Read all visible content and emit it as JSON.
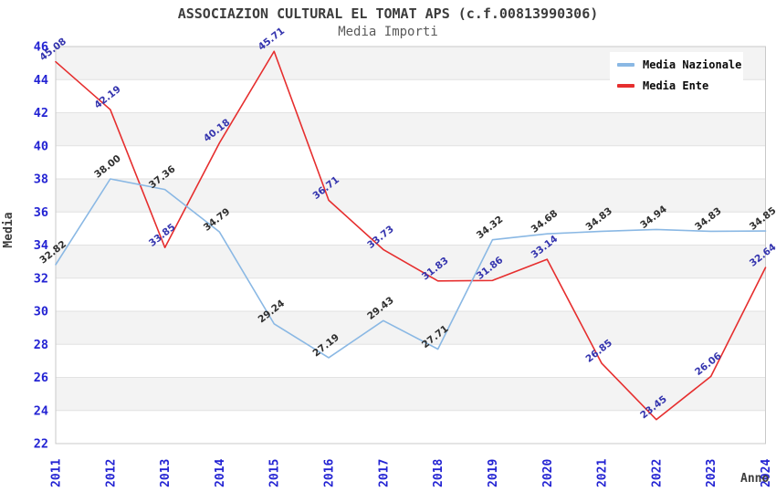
{
  "chart_data": {
    "type": "line",
    "title": "ASSOCIAZION CULTURAL EL TOMAT APS (c.f.00813990306)",
    "subtitle": "Media Importi",
    "xlabel": "Anno",
    "ylabel": "Media",
    "ylim": [
      22,
      46
    ],
    "ytick_step": 2,
    "grid": "alternating-gray-bands",
    "legend_position": "top-right",
    "x": [
      "2011",
      "2012",
      "2013",
      "2014",
      "2015",
      "2016",
      "2017",
      "2018",
      "2019",
      "2020",
      "2021",
      "2022",
      "2023",
      "2024"
    ],
    "series": [
      {
        "name": "Media Nazionale",
        "color": "#8ab8e4",
        "label_color": "#2e2e2e",
        "values": [
          32.82,
          38.0,
          37.36,
          34.79,
          29.24,
          27.19,
          29.43,
          27.71,
          34.32,
          34.68,
          34.83,
          34.94,
          34.83,
          34.85
        ]
      },
      {
        "name": "Media Ente",
        "color": "#e62e2e",
        "label_color": "#3434ae",
        "values": [
          45.08,
          42.19,
          33.85,
          40.18,
          45.71,
          36.71,
          33.73,
          31.83,
          31.86,
          33.14,
          26.85,
          23.45,
          26.06,
          32.64
        ]
      }
    ]
  },
  "axis_style": {
    "tick_color": "#2323d3",
    "band_color": "#f3f3f3",
    "grid_color": "#e2e2e2",
    "border_color": "#c9c9c9"
  }
}
